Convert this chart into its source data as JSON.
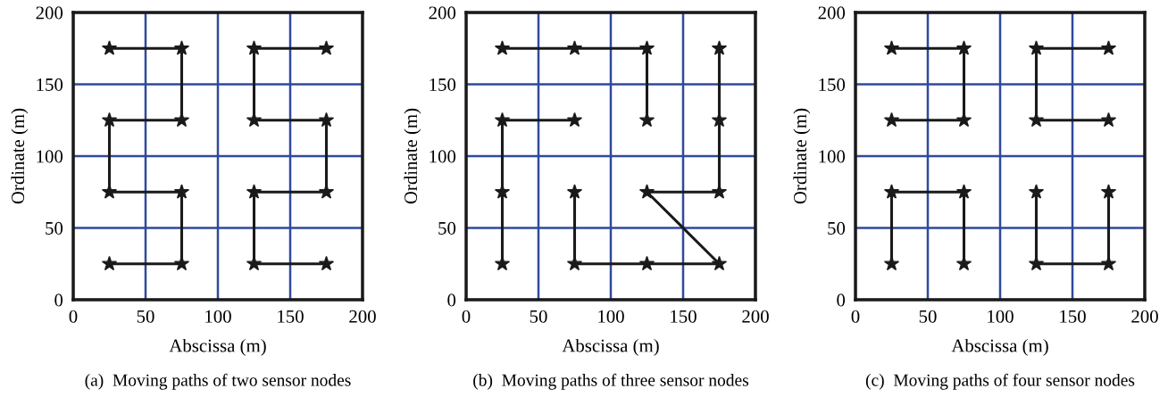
{
  "chart_data": [
    {
      "type": "line",
      "xlabel": "Abscissa (m)",
      "ylabel": "Ordinate (m)",
      "annotations": [
        "(a)  Moving paths of two sensor nodes"
      ],
      "xlim": [
        0,
        200
      ],
      "ylim": [
        0,
        200
      ],
      "xticks": [
        0,
        50,
        100,
        150,
        200
      ],
      "yticks": [
        0,
        50,
        100,
        150,
        200
      ],
      "grid": true,
      "marker": "star",
      "line_style": "solid",
      "series": [
        {
          "color": "#1a1a1a",
          "x": [
            25,
            75,
            75,
            25,
            25,
            75,
            75,
            25
          ],
          "values": [
            175,
            175,
            125,
            125,
            75,
            75,
            25,
            25
          ]
        },
        {
          "color": "#1a1a1a",
          "x": [
            175,
            125,
            125,
            175,
            175,
            125,
            125,
            175
          ],
          "values": [
            175,
            175,
            125,
            125,
            75,
            75,
            25,
            25
          ]
        }
      ]
    },
    {
      "type": "line",
      "xlabel": "Abscissa (m)",
      "ylabel": "Ordinate (m)",
      "annotations": [
        "(b)  Moving paths of three sensor nodes"
      ],
      "xlim": [
        0,
        200
      ],
      "ylim": [
        0,
        200
      ],
      "xticks": [
        0,
        50,
        100,
        150,
        200
      ],
      "yticks": [
        0,
        50,
        100,
        150,
        200
      ],
      "grid": true,
      "marker": "star",
      "line_style": "solid",
      "series": [
        {
          "color": "#1a1a1a",
          "x": [
            25,
            25,
            25,
            75
          ],
          "values": [
            25,
            75,
            125,
            125
          ]
        },
        {
          "color": "#1a1a1a",
          "x": [
            75,
            75,
            125,
            175,
            125,
            175,
            175,
            175
          ],
          "values": [
            75,
            25,
            25,
            25,
            75,
            75,
            125,
            175
          ]
        },
        {
          "color": "#1a1a1a",
          "x": [
            25,
            75,
            125,
            125
          ],
          "values": [
            175,
            175,
            175,
            125
          ]
        }
      ]
    },
    {
      "type": "line",
      "xlabel": "Abscissa (m)",
      "ylabel": "Ordinate (m)",
      "annotations": [
        "(c)  Moving paths of four sensor nodes"
      ],
      "xlim": [
        0,
        200
      ],
      "ylim": [
        0,
        200
      ],
      "xticks": [
        0,
        50,
        100,
        150,
        200
      ],
      "yticks": [
        0,
        50,
        100,
        150,
        200
      ],
      "grid": true,
      "marker": "star",
      "line_style": "solid",
      "series": [
        {
          "color": "#1a1a1a",
          "x": [
            25,
            75,
            75,
            25
          ],
          "values": [
            175,
            175,
            125,
            125
          ]
        },
        {
          "color": "#1a1a1a",
          "x": [
            175,
            125,
            125,
            175
          ],
          "values": [
            175,
            175,
            125,
            125
          ]
        },
        {
          "color": "#1a1a1a",
          "x": [
            25,
            25,
            75,
            75
          ],
          "values": [
            25,
            75,
            75,
            25
          ]
        },
        {
          "color": "#1a1a1a",
          "x": [
            125,
            125,
            175,
            175
          ],
          "values": [
            75,
            25,
            25,
            75
          ]
        }
      ]
    }
  ]
}
